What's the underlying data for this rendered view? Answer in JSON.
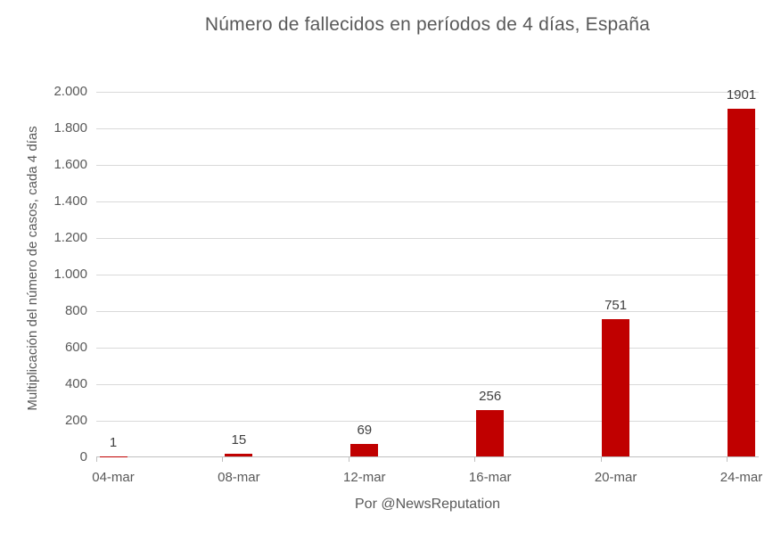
{
  "chart_data": {
    "type": "bar",
    "title": "Número de fallecidos en períodos de 4 días, España",
    "categories": [
      "04-mar",
      "08-mar",
      "12-mar",
      "16-mar",
      "20-mar",
      "24-mar"
    ],
    "values": [
      1,
      15,
      69,
      256,
      751,
      1901
    ],
    "data_labels": [
      "1",
      "15",
      "69",
      "256",
      "751",
      "1901"
    ],
    "xlabel": "Por @NewsReputation",
    "ylabel": "Multiplicación del número de casos, cada 4 días",
    "ylim": [
      0,
      2000
    ],
    "ytick_step": 200,
    "ytick_labels": [
      "0",
      "200",
      "400",
      "600",
      "800",
      "1.000",
      "1.200",
      "1.400",
      "1.600",
      "1.800",
      "2.000"
    ],
    "grid": true,
    "legend": "none",
    "bar_color": "#C00000",
    "colors": {
      "title_text": "#595959",
      "axis_text": "#595959",
      "data_label_text": "#404040",
      "gridline": "#D9D9D9",
      "axis_line": "#BFBFBF",
      "background": "#FFFFFF"
    }
  }
}
